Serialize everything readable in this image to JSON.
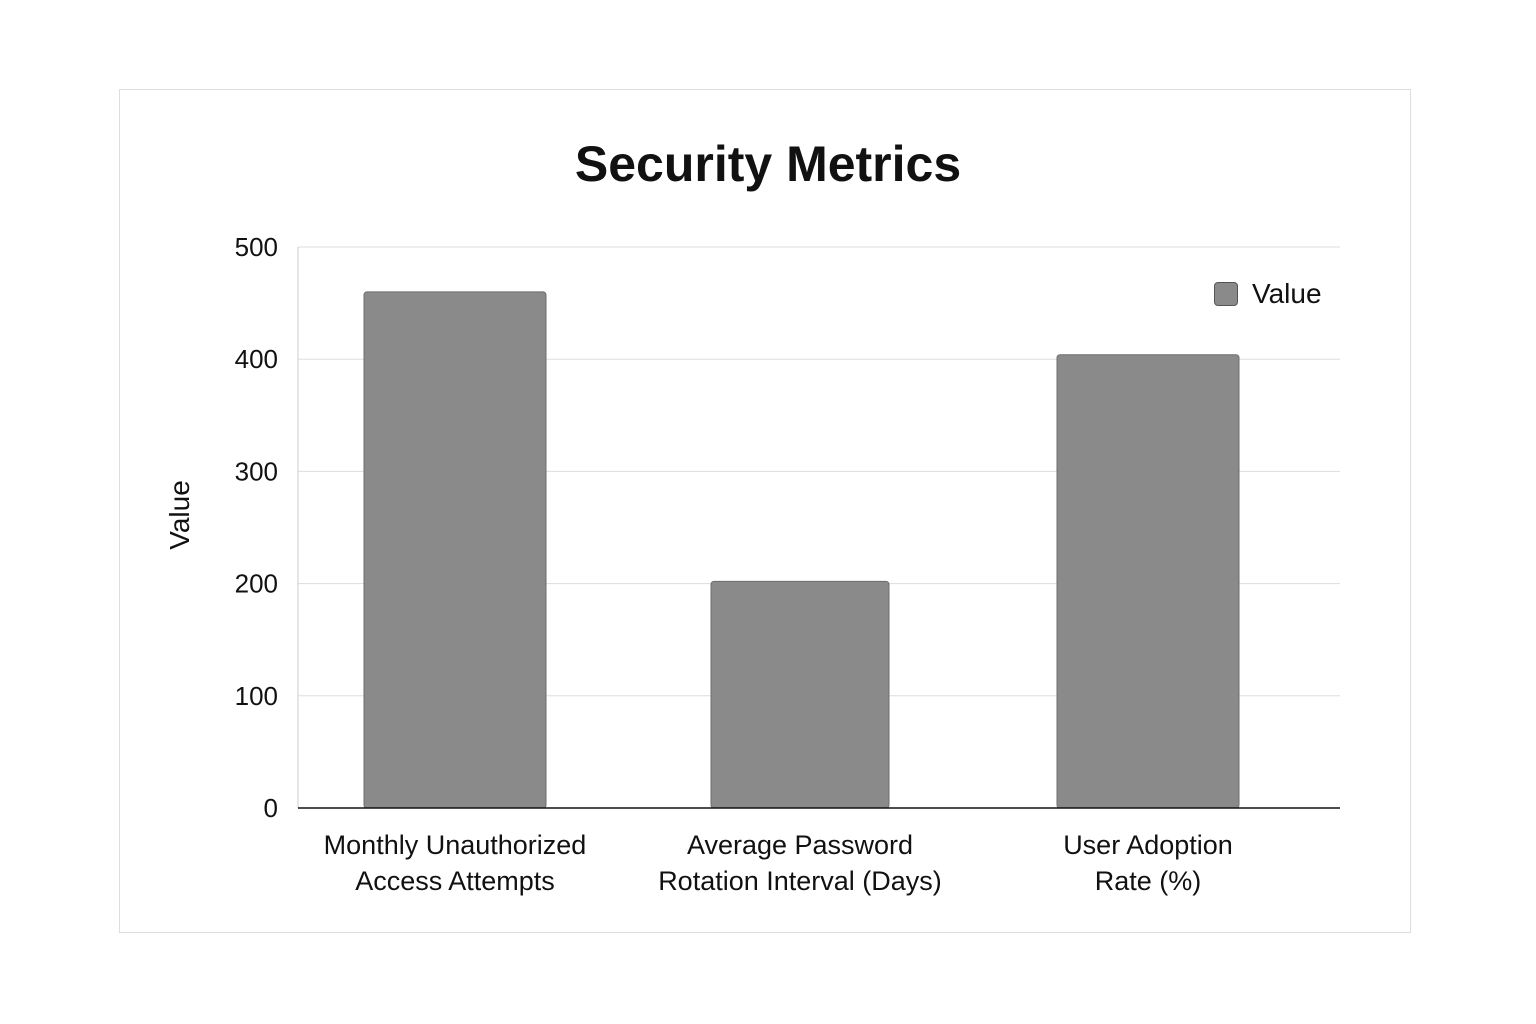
{
  "chart_data": {
    "type": "bar",
    "title": "Security Metrics",
    "xlabel": "",
    "ylabel": "Value",
    "categories": [
      [
        "Monthly Unauthorized",
        "Access Attempts"
      ],
      [
        "Average Password",
        "Rotation Interval  (Days)"
      ],
      [
        "User Adoption",
        "Rate (%)"
      ]
    ],
    "series": [
      {
        "name": "Value",
        "values": [
          460,
          202,
          404
        ],
        "color": "#8a8a8a"
      }
    ],
    "ylim": [
      0,
      500
    ],
    "yticks": [
      0,
      100,
      200,
      300,
      400,
      500
    ],
    "grid": true,
    "legend_position": "top-right"
  }
}
